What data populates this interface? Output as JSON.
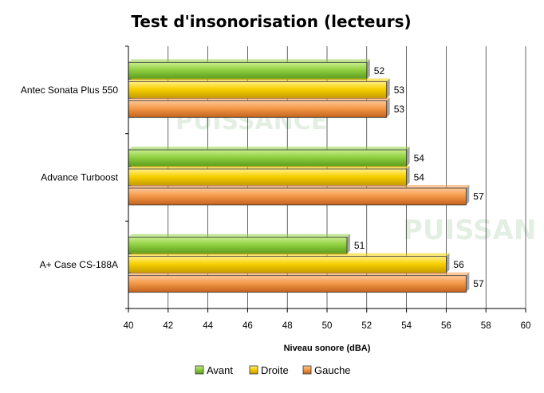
{
  "chart_data": {
    "type": "bar",
    "orientation": "horizontal",
    "title": "Test d'insonorisation (lecteurs)",
    "xlabel": "Niveau sonore (dBA)",
    "ylabel": "",
    "xlim": [
      40,
      60
    ],
    "xticks": [
      40,
      42,
      44,
      46,
      48,
      50,
      52,
      54,
      56,
      58,
      60
    ],
    "grid": true,
    "legend_position": "bottom",
    "categories": [
      "Antec Sonata Plus 550",
      "Advance Turboost",
      "A+ Case CS-188A"
    ],
    "series": [
      {
        "name": "Avant",
        "color": "#8fcf40",
        "values": [
          52,
          54,
          51
        ]
      },
      {
        "name": "Droite",
        "color": "#f7d000",
        "values": [
          53,
          54,
          56
        ]
      },
      {
        "name": "Gauche",
        "color": "#f59a4a",
        "values": [
          53,
          57,
          57
        ]
      }
    ]
  }
}
